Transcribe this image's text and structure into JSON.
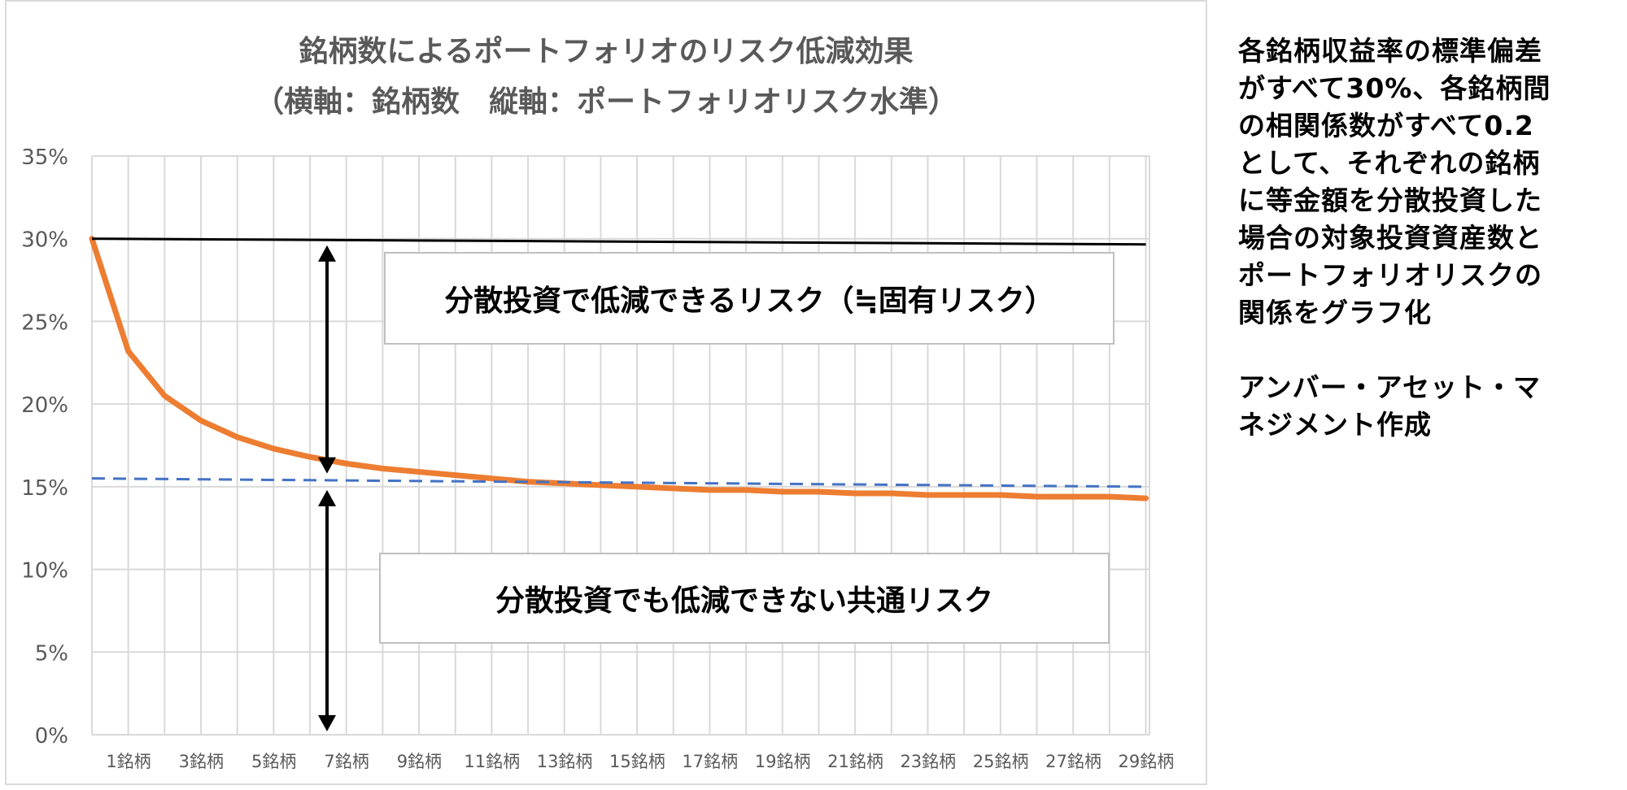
{
  "chart_data": {
    "type": "line",
    "title": "銘柄数によるポートフォリオのリスク低減効果",
    "subtitle": "（横軸：銘柄数　縦軸：ポートフォリオリスク水準）",
    "x_tick_labels": [
      "1銘柄",
      "3銘柄",
      "5銘柄",
      "7銘柄",
      "9銘柄",
      "11銘柄",
      "13銘柄",
      "15銘柄",
      "17銘柄",
      "19銘柄",
      "21銘柄",
      "23銘柄",
      "25銘柄",
      "27銘柄",
      "29銘柄"
    ],
    "y_tick_labels": [
      "0%",
      "5%",
      "10%",
      "15%",
      "20%",
      "25%",
      "30%",
      "35%"
    ],
    "xlim": [
      1,
      30
    ],
    "ylim": [
      0,
      35
    ],
    "x": [
      1,
      2,
      3,
      4,
      5,
      6,
      7,
      8,
      9,
      10,
      11,
      12,
      13,
      14,
      15,
      16,
      17,
      18,
      19,
      20,
      21,
      22,
      23,
      24,
      25,
      26,
      27,
      28,
      29,
      30
    ],
    "series": [
      {
        "values": [
          30.0,
          23.2,
          20.5,
          19.0,
          18.0,
          17.3,
          16.8,
          16.4,
          16.1,
          15.9,
          15.7,
          15.5,
          15.3,
          15.2,
          15.1,
          15.0,
          14.9,
          14.8,
          14.8,
          14.7,
          14.7,
          14.6,
          14.6,
          14.5,
          14.5,
          14.5,
          14.4,
          14.4,
          14.4,
          14.3
        ],
        "color": "#ed7d31",
        "style": "solid"
      },
      {
        "values": [
          30.0,
          30.0
        ],
        "x": [
          1,
          30
        ],
        "color": "#000000",
        "style": "solid"
      },
      {
        "values": [
          15.5,
          15.0
        ],
        "x": [
          1,
          30
        ],
        "color": "#4472c4",
        "style": "dashed"
      }
    ],
    "annotations": [
      "分散投資で低減できるリスク（≒固有リスク）",
      "分散投資でも低減できない共通リスク"
    ],
    "grid": true
  },
  "side_note": {
    "lines_1": "各銘柄収益率の標準偏差\nがすべて30%、各銘柄間\nの相関係数がすべて0.2\nとして、それぞれの銘柄\nに等金額を分散投資した\n場合の対象投資資産数と\nポートフォリオリスクの\n関係をグラフ化",
    "lines_2": "アンバー・アセット・マ\nネジメント作成"
  },
  "colors": {
    "risk_curve": "#ed7d31",
    "total_risk_line": "#000000",
    "market_risk_line": "#4472c4",
    "grid": "#d9d9d9",
    "axis_text": "#595959"
  }
}
